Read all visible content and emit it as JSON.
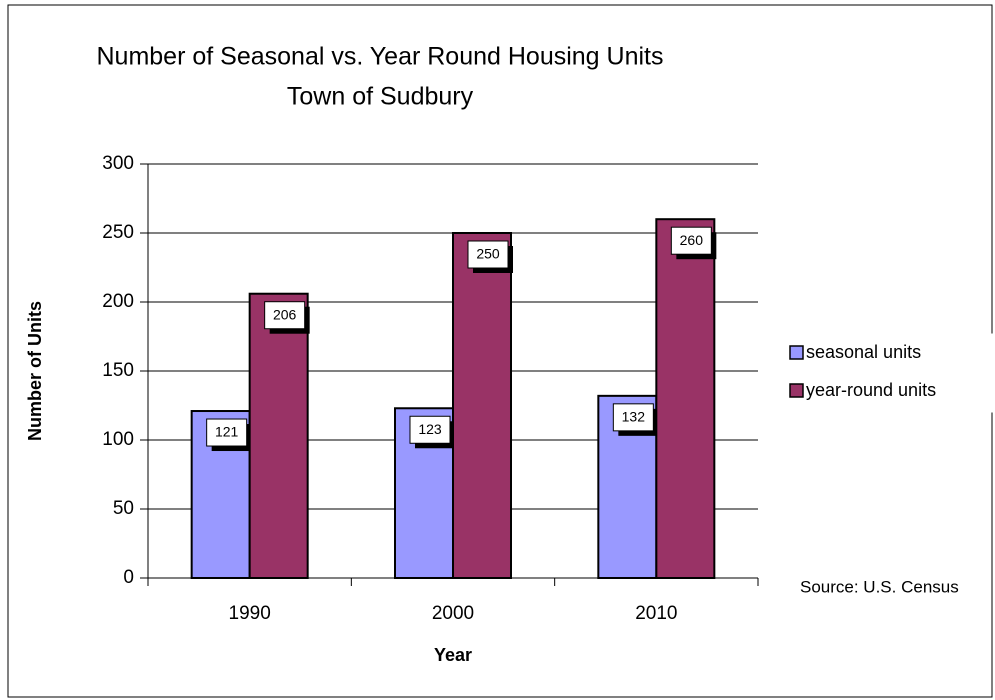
{
  "chart_data": {
    "type": "bar",
    "title": "Number of Seasonal vs. Year Round Housing Units",
    "subtitle": "Town of Sudbury",
    "x_label": "Year",
    "y_label": "Number of  Units",
    "source": "Source: U.S. Census",
    "categories": [
      "1990",
      "2000",
      "2010"
    ],
    "series": [
      {
        "name": "seasonal units",
        "color": "#9999ff",
        "values": [
          121,
          123,
          132
        ]
      },
      {
        "name": "year-round units",
        "color": "#993366",
        "values": [
          206,
          250,
          260
        ]
      }
    ],
    "ylim": [
      0,
      300
    ],
    "yticks": [
      0,
      50,
      100,
      150,
      200,
      250,
      300
    ],
    "grid": true,
    "legend": "right"
  }
}
